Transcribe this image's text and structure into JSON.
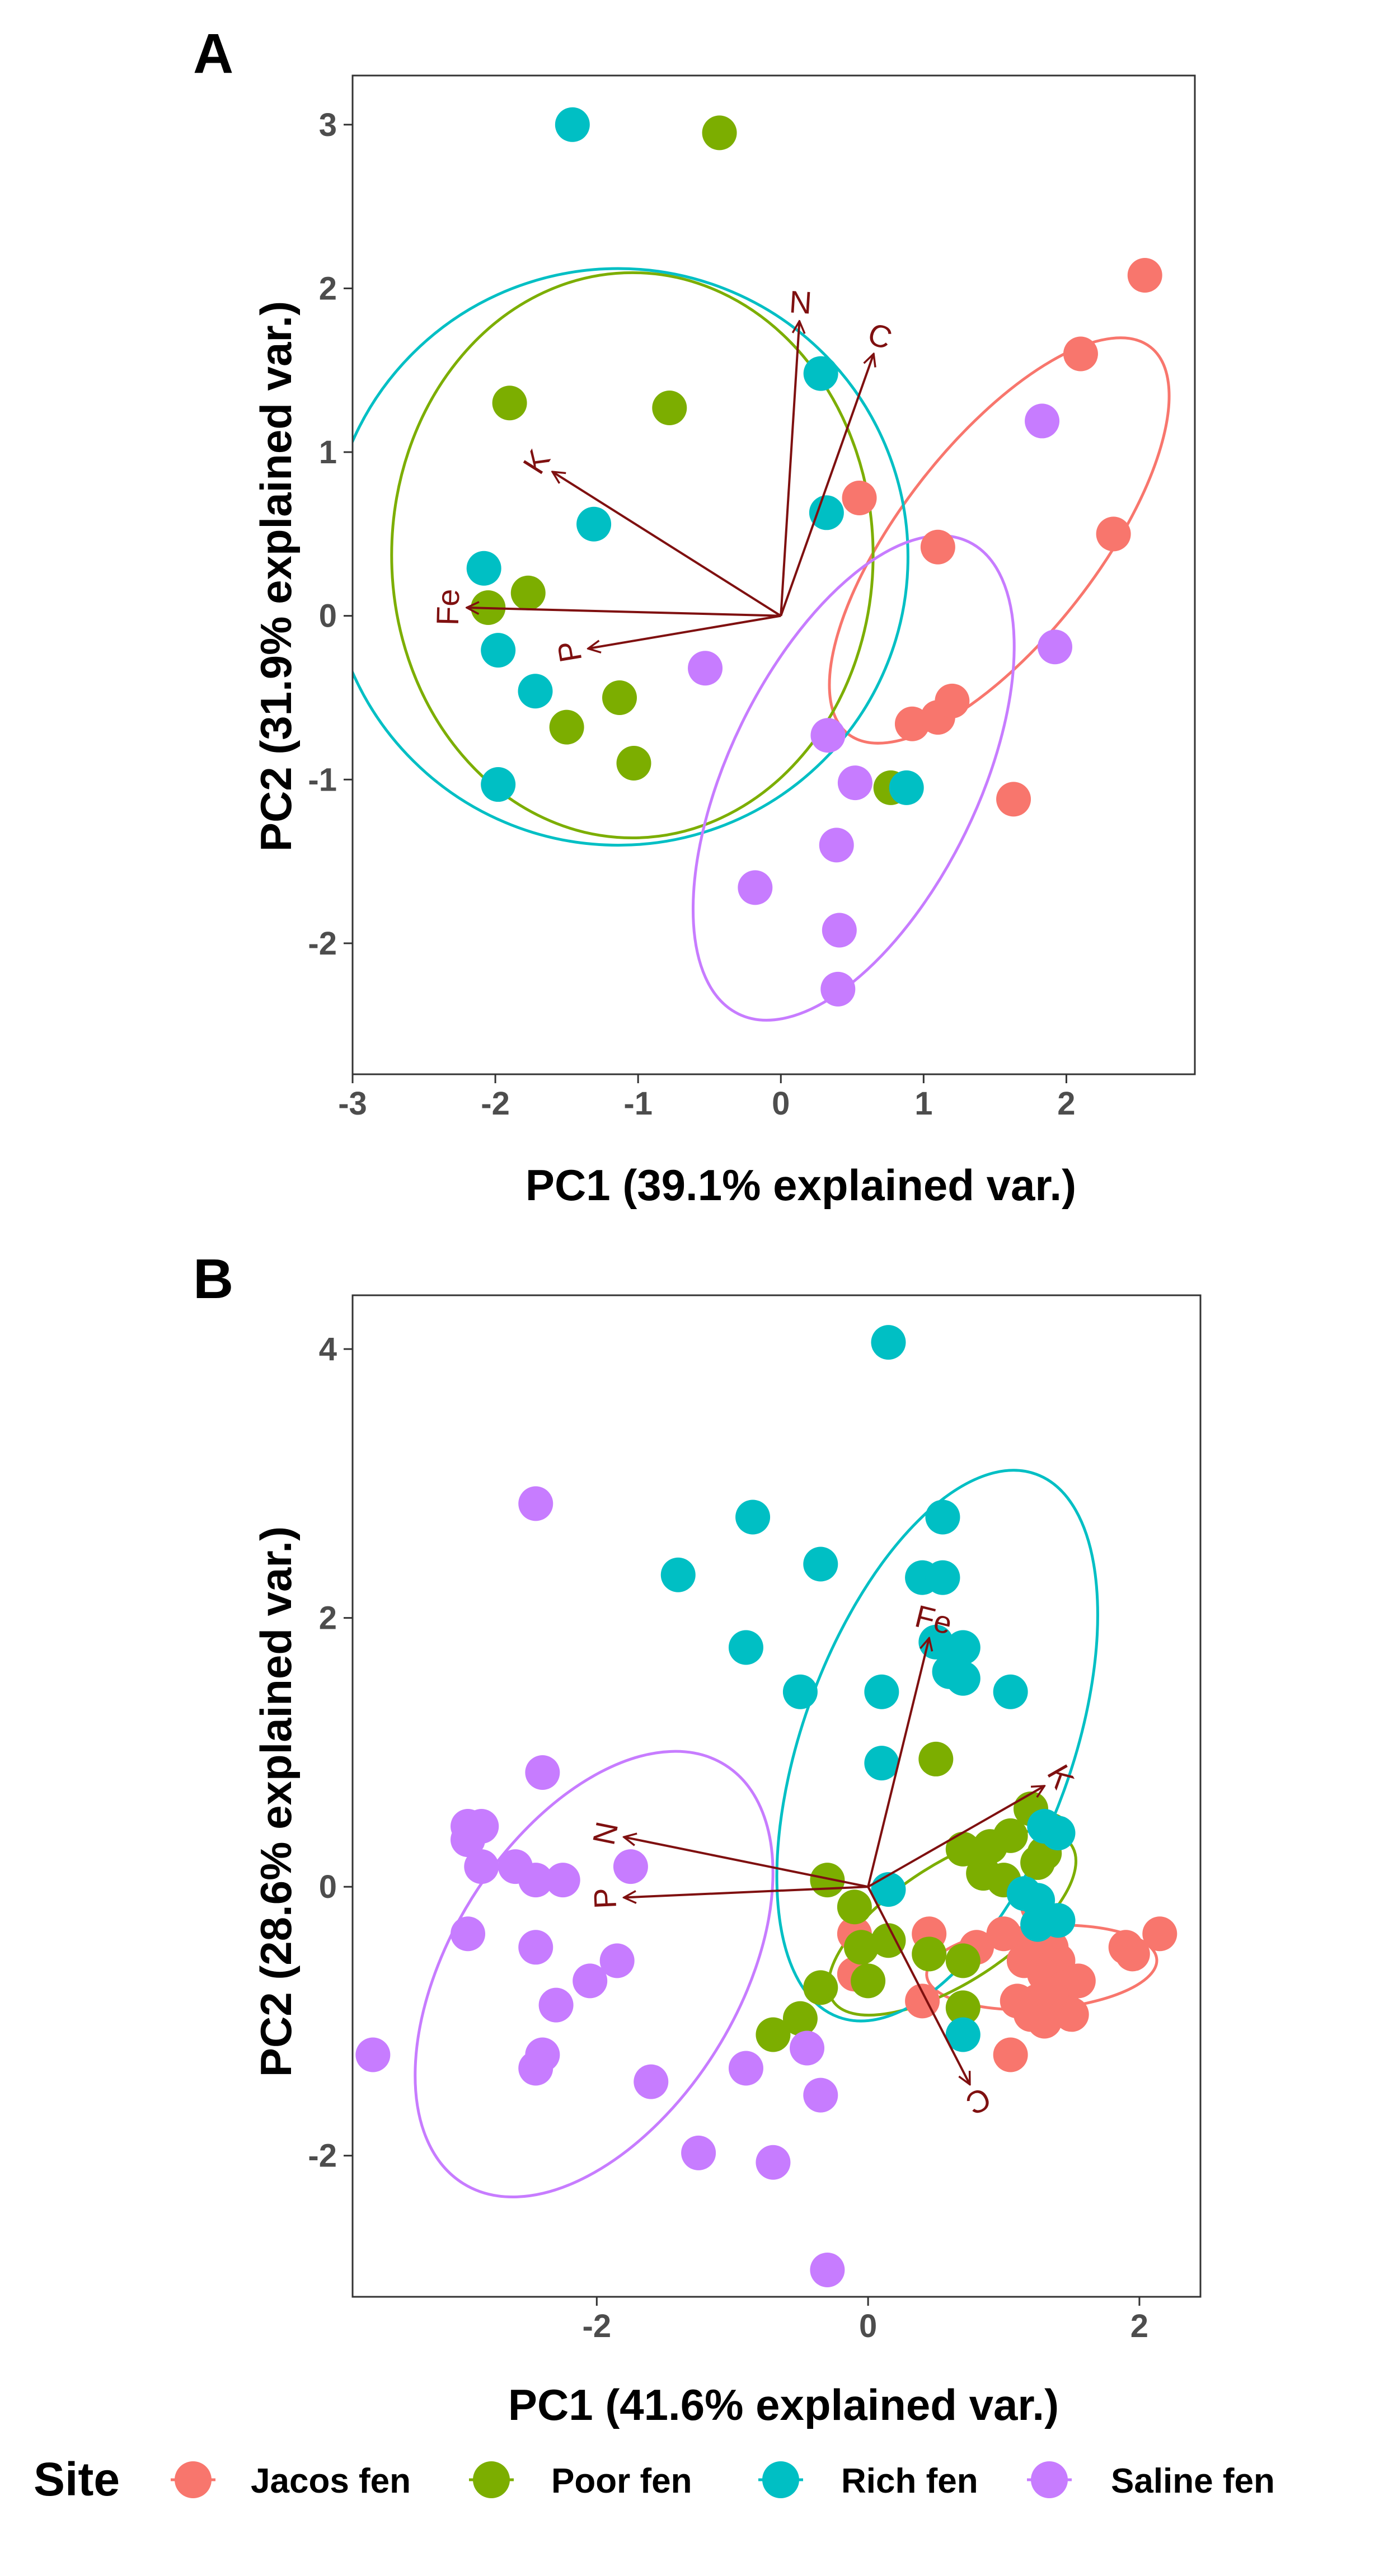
{
  "legend": {
    "title": "Site",
    "items": [
      {
        "name": "Jacos fen",
        "color": "#f8766d"
      },
      {
        "name": "Poor fen",
        "color": "#7cae00"
      },
      {
        "name": "Rich fen",
        "color": "#00bfc4"
      },
      {
        "name": "Saline fen",
        "color": "#c77cff"
      }
    ]
  },
  "chart_data": [
    {
      "type": "scatter",
      "panel": "A",
      "xlabel": "PC1 (39.1% explained var.)",
      "ylabel": "PC2 (31.9% explained var.)",
      "xlim": [
        -3.0,
        2.9
      ],
      "ylim": [
        -2.8,
        3.3
      ],
      "xticks": [
        -3,
        -2,
        -1,
        0,
        1,
        2
      ],
      "yticks": [
        -2,
        -1,
        0,
        1,
        2,
        3
      ],
      "grid": false,
      "arrow_color": "#7f1010",
      "loadings": [
        {
          "label": "N",
          "x": 0.13,
          "y": 1.8
        },
        {
          "label": "C",
          "x": 0.65,
          "y": 1.6
        },
        {
          "label": "K",
          "x": -1.6,
          "y": 0.88
        },
        {
          "label": "Fe",
          "x": -2.2,
          "y": 0.05
        },
        {
          "label": "P",
          "x": -1.35,
          "y": -0.2
        }
      ],
      "ellipses": [
        {
          "series": "Jacos fen",
          "cx": 1.53,
          "cy": 0.46,
          "rx": 1.72,
          "ry": 0.6,
          "angle_deg": 52
        },
        {
          "series": "Poor fen",
          "cx": -1.04,
          "cy": 0.37,
          "rx": 1.98,
          "ry": 1.47,
          "angle_deg": 90
        },
        {
          "series": "Rich fen",
          "cx": -1.14,
          "cy": 0.36,
          "rx": 2.02,
          "ry": 1.77,
          "angle_deg": 90
        },
        {
          "series": "Saline fen",
          "cx": 0.51,
          "cy": -0.99,
          "rx": 1.84,
          "ry": 0.76,
          "angle_deg": 64
        }
      ],
      "series": [
        {
          "name": "Jacos fen",
          "points": [
            [
              2.55,
              2.08
            ],
            [
              2.1,
              1.6
            ],
            [
              2.33,
              0.5
            ],
            [
              0.55,
              0.72
            ],
            [
              1.1,
              0.42
            ],
            [
              0.92,
              -0.66
            ],
            [
              1.1,
              -0.62
            ],
            [
              1.2,
              -0.52
            ],
            [
              1.63,
              -1.12
            ]
          ]
        },
        {
          "name": "Poor fen",
          "points": [
            [
              -0.43,
              2.95
            ],
            [
              -1.9,
              1.3
            ],
            [
              -0.78,
              1.27
            ],
            [
              -2.05,
              0.05
            ],
            [
              -1.77,
              0.14
            ],
            [
              -1.13,
              -0.5
            ],
            [
              -1.5,
              -0.68
            ],
            [
              -1.03,
              -0.9
            ],
            [
              0.77,
              -1.05
            ]
          ]
        },
        {
          "name": "Rich fen",
          "points": [
            [
              -1.46,
              3.0
            ],
            [
              0.28,
              1.48
            ],
            [
              -1.31,
              0.56
            ],
            [
              -2.08,
              0.29
            ],
            [
              0.32,
              0.63
            ],
            [
              -1.98,
              -0.21
            ],
            [
              -1.72,
              -0.46
            ],
            [
              -1.98,
              -1.03
            ],
            [
              0.88,
              -1.05
            ]
          ]
        },
        {
          "name": "Saline fen",
          "points": [
            [
              1.83,
              1.19
            ],
            [
              1.92,
              -0.19
            ],
            [
              -0.53,
              -0.32
            ],
            [
              0.33,
              -0.73
            ],
            [
              0.52,
              -1.02
            ],
            [
              0.39,
              -1.4
            ],
            [
              -0.18,
              -1.66
            ],
            [
              0.41,
              -1.92
            ],
            [
              0.4,
              -2.28
            ]
          ]
        }
      ]
    },
    {
      "type": "scatter",
      "panel": "B",
      "xlabel": "PC1 (41.6% explained var.)",
      "ylabel": "PC2 (28.6% explained var.)",
      "xlim": [
        -3.8,
        2.45
      ],
      "ylim": [
        -3.05,
        4.4
      ],
      "xticks": [
        -2,
        0,
        2
      ],
      "yticks": [
        -2,
        0,
        2,
        4
      ],
      "grid": false,
      "arrow_color": "#7f1010",
      "loadings": [
        {
          "label": "Fe",
          "x": 0.45,
          "y": 1.85
        },
        {
          "label": "K",
          "x": 1.3,
          "y": 0.75
        },
        {
          "label": "N",
          "x": -1.8,
          "y": 0.37
        },
        {
          "label": "P",
          "x": -1.8,
          "y": -0.08
        },
        {
          "label": "C",
          "x": 0.75,
          "y": -1.47
        }
      ],
      "ellipses": [
        {
          "series": "Jacos fen",
          "cx": 1.28,
          "cy": -0.6,
          "rx": 0.85,
          "ry": 0.31,
          "angle_deg": 4
        },
        {
          "series": "Poor fen",
          "cx": 0.62,
          "cy": -0.27,
          "rx": 1.05,
          "ry": 0.44,
          "angle_deg": 33
        },
        {
          "series": "Rich fen",
          "cx": 0.51,
          "cy": 1.05,
          "rx": 2.13,
          "ry": 1.0,
          "angle_deg": 70
        },
        {
          "series": "Saline fen",
          "cx": -2.02,
          "cy": -0.65,
          "rx": 1.82,
          "ry": 1.07,
          "angle_deg": 58
        }
      ],
      "series": [
        {
          "name": "Jacos fen",
          "points": [
            [
              1.25,
              -0.15
            ],
            [
              1.35,
              -0.45
            ],
            [
              1.4,
              -0.55
            ],
            [
              1.2,
              -0.4
            ],
            [
              1.15,
              -0.55
            ],
            [
              1.3,
              -0.65
            ],
            [
              1.45,
              -0.75
            ],
            [
              1.55,
              -0.7
            ],
            [
              1.25,
              -0.85
            ],
            [
              1.1,
              -0.85
            ],
            [
              1.2,
              -0.95
            ],
            [
              1.3,
              -1.0
            ],
            [
              1.5,
              -0.95
            ],
            [
              1.35,
              -0.8
            ],
            [
              1.05,
              -1.25
            ],
            [
              1.9,
              -0.45
            ],
            [
              1.95,
              -0.5
            ],
            [
              2.15,
              -0.35
            ],
            [
              0.8,
              -0.45
            ],
            [
              1.0,
              -0.35
            ],
            [
              -0.1,
              -0.35
            ],
            [
              -0.1,
              -0.65
            ],
            [
              0.4,
              -0.85
            ],
            [
              0.45,
              -0.35
            ]
          ]
        },
        {
          "name": "Poor fen",
          "points": [
            [
              0.5,
              0.95
            ],
            [
              1.2,
              0.58
            ],
            [
              1.35,
              0.42
            ],
            [
              1.3,
              0.25
            ],
            [
              1.25,
              0.18
            ],
            [
              1.05,
              0.38
            ],
            [
              0.9,
              0.3
            ],
            [
              0.7,
              0.28
            ],
            [
              0.85,
              0.1
            ],
            [
              1.0,
              0.05
            ],
            [
              -0.3,
              0.05
            ],
            [
              -0.1,
              -0.15
            ],
            [
              0.15,
              -0.4
            ],
            [
              0.45,
              -0.5
            ],
            [
              0.7,
              -0.55
            ],
            [
              0.7,
              -0.9
            ],
            [
              -0.05,
              -0.45
            ],
            [
              0.0,
              -0.7
            ],
            [
              -0.35,
              -0.75
            ],
            [
              -0.5,
              -0.98
            ],
            [
              -0.7,
              -1.1
            ]
          ]
        },
        {
          "name": "Rich fen",
          "points": [
            [
              0.15,
              4.05
            ],
            [
              -0.85,
              2.75
            ],
            [
              -0.35,
              2.4
            ],
            [
              0.55,
              2.75
            ],
            [
              0.4,
              2.3
            ],
            [
              0.55,
              2.3
            ],
            [
              -1.4,
              2.32
            ],
            [
              -0.9,
              1.78
            ],
            [
              0.7,
              1.78
            ],
            [
              0.5,
              1.82
            ],
            [
              0.6,
              1.6
            ],
            [
              0.7,
              1.55
            ],
            [
              -0.5,
              1.45
            ],
            [
              0.1,
              1.45
            ],
            [
              1.05,
              1.45
            ],
            [
              0.1,
              0.92
            ],
            [
              1.3,
              0.45
            ],
            [
              1.4,
              0.4
            ],
            [
              0.15,
              -0.02
            ],
            [
              1.15,
              -0.05
            ],
            [
              1.25,
              -0.1
            ],
            [
              1.4,
              -0.25
            ],
            [
              1.25,
              -0.28
            ],
            [
              0.7,
              -1.1
            ]
          ]
        },
        {
          "name": "Saline fen",
          "points": [
            [
              -2.45,
              2.85
            ],
            [
              -2.4,
              0.85
            ],
            [
              -2.95,
              0.45
            ],
            [
              -2.85,
              0.45
            ],
            [
              -2.95,
              0.35
            ],
            [
              -2.6,
              0.15
            ],
            [
              -2.85,
              0.15
            ],
            [
              -2.45,
              0.05
            ],
            [
              -2.25,
              0.05
            ],
            [
              -1.75,
              0.15
            ],
            [
              -2.95,
              -0.35
            ],
            [
              -2.45,
              -0.45
            ],
            [
              -1.85,
              -0.55
            ],
            [
              -2.05,
              -0.7
            ],
            [
              -2.3,
              -0.88
            ],
            [
              -2.4,
              -1.25
            ],
            [
              -2.45,
              -1.35
            ],
            [
              -3.65,
              -1.25
            ],
            [
              -1.6,
              -1.45
            ],
            [
              -0.9,
              -1.35
            ],
            [
              -0.45,
              -1.2
            ],
            [
              -0.35,
              -1.55
            ],
            [
              -1.25,
              -1.98
            ],
            [
              -0.7,
              -2.05
            ],
            [
              -0.3,
              -2.85
            ]
          ]
        }
      ]
    }
  ]
}
